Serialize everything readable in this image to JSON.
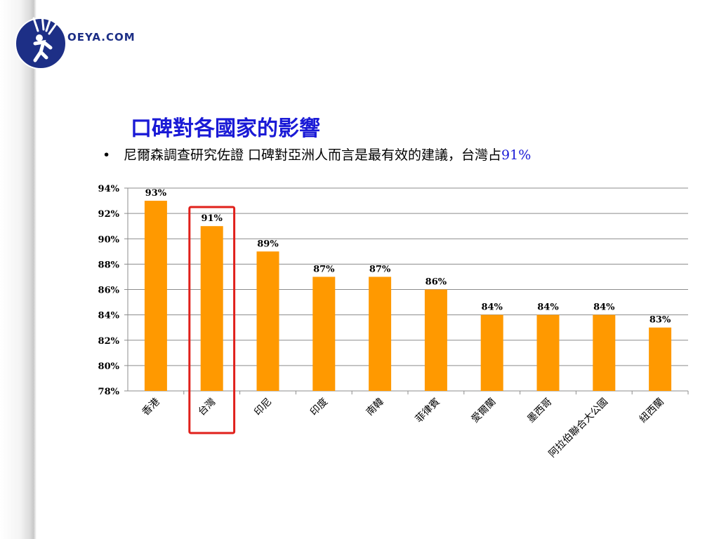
{
  "logo": {
    "text": "OEYA.COM",
    "icon": "oeya-logo-icon",
    "brand_color": "#1d2f86"
  },
  "slide": {
    "title": "口碑對各國家的影響",
    "subtitle_prefix": "尼爾森調查研究佐證 口碑對亞洲人而言是最有效的建議，台灣占",
    "subtitle_highlight": "91%",
    "bullet": "•",
    "title_color": "#1a1ad6"
  },
  "chart_data": {
    "type": "bar",
    "categories": [
      "香港",
      "台灣",
      "印尼",
      "印度",
      "南韓",
      "菲律賓",
      "愛爾蘭",
      "墨西哥",
      "阿拉伯聯合大公國",
      "紐西蘭"
    ],
    "values": [
      93,
      91,
      89,
      87,
      87,
      86,
      84,
      84,
      84,
      83
    ],
    "data_labels": [
      "93%",
      "91%",
      "89%",
      "87%",
      "87%",
      "86%",
      "84%",
      "84%",
      "84%",
      "83%"
    ],
    "ylim": [
      78,
      94
    ],
    "yticks": [
      78,
      80,
      82,
      84,
      86,
      88,
      90,
      92,
      94
    ],
    "ytick_labels": [
      "78%",
      "80%",
      "82%",
      "84%",
      "86%",
      "88%",
      "90%",
      "92%",
      "94%"
    ],
    "grid": true,
    "bar_color": "#ff9900",
    "highlight_category": "台灣",
    "highlight_color": "#e0201b"
  }
}
